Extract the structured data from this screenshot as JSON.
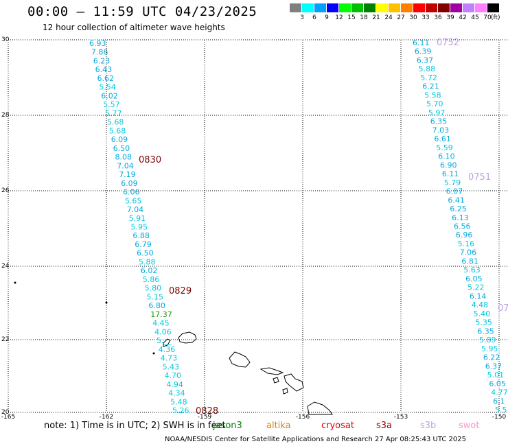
{
  "header": {
    "title": "00:00 – 11:59 UTC 04/23/2025",
    "subtitle": "12 hour collection of altimeter wave heights"
  },
  "colorbar": {
    "units": "(ft)",
    "colors": [
      "#808080",
      "#00ffff",
      "#00a0ff",
      "#0000ff",
      "#00ff00",
      "#00c000",
      "#008000",
      "#ffff00",
      "#ffc000",
      "#ff8000",
      "#ff0000",
      "#c00000",
      "#800000",
      "#a000a0",
      "#c080ff",
      "#ff80ff",
      "#000000"
    ],
    "labels": [
      "3",
      "6",
      "9",
      "12",
      "15",
      "18",
      "21",
      "24",
      "27",
      "30",
      "33",
      "36",
      "39",
      "42",
      "45",
      "70"
    ]
  },
  "axes": {
    "lat_ticks": [
      "30",
      "28",
      "26",
      "24",
      "22",
      "20"
    ],
    "lon_ticks": [
      "-165",
      "-162",
      "-159",
      "-156",
      "-153",
      "-150"
    ]
  },
  "track_left": {
    "values": [
      "6.93",
      "7.86",
      "6.23",
      "6.43",
      "6.62",
      "5.54",
      "6.02",
      "5.57",
      "5.77",
      "5.68",
      "5.68",
      "6.09",
      "6.50",
      "8.08",
      "7.04",
      "7.19",
      "6.09",
      "6.06",
      "5.65",
      "7.04",
      "5.91",
      "5.95",
      "6.88",
      "6.79",
      "6.50",
      "5.88",
      "6.02",
      "5.86",
      "5.80",
      "5.15",
      "6.80",
      "17.37",
      "4.45",
      "4.06",
      "5.__",
      "4.36",
      "4.73",
      "5.43",
      "4.70",
      "4.94",
      "4.34",
      "5.48",
      "5.26"
    ],
    "times": [
      "0830",
      "0829",
      "0828"
    ]
  },
  "track_right": {
    "values": [
      "6.11",
      "6.39",
      "6.37",
      "5.88",
      "5.72",
      "6.21",
      "5.58",
      "5.70",
      "5.97",
      "6.35",
      "7.03",
      "6.61",
      "5.59",
      "6.10",
      "6.90",
      "6.11",
      "5.79",
      "6.07",
      "6.41",
      "6.25",
      "6.13",
      "6.56",
      "6.96",
      "5.16",
      "7.06",
      "6.81",
      "5.63",
      "6.05",
      "5.22",
      "6.14",
      "4.48",
      "5.40",
      "5.35",
      "6.35",
      "5.89",
      "5.95",
      "6.22",
      "6.37",
      "5.01",
      "6.05",
      "4.77",
      "6.1",
      "5.5"
    ],
    "times": [
      "0752",
      "0751",
      "07"
    ]
  },
  "note": {
    "prefix": "note:  1) Time is in UTC; 2) SWH is in feet",
    "overlap": "jason3",
    "legend": [
      {
        "name": "altika",
        "color": "#e08000"
      },
      {
        "name": "cryosat",
        "color": "#e00000"
      },
      {
        "name": "s3a",
        "color": "#a00000"
      },
      {
        "name": "s3b",
        "color": "#c0a0e0"
      },
      {
        "name": "swot",
        "color": "#ff90d0"
      }
    ]
  },
  "footer": "NOAA/NESDIS Center for Satellite Applications and Research   27 Apr 08:25:43 UTC 2025"
}
